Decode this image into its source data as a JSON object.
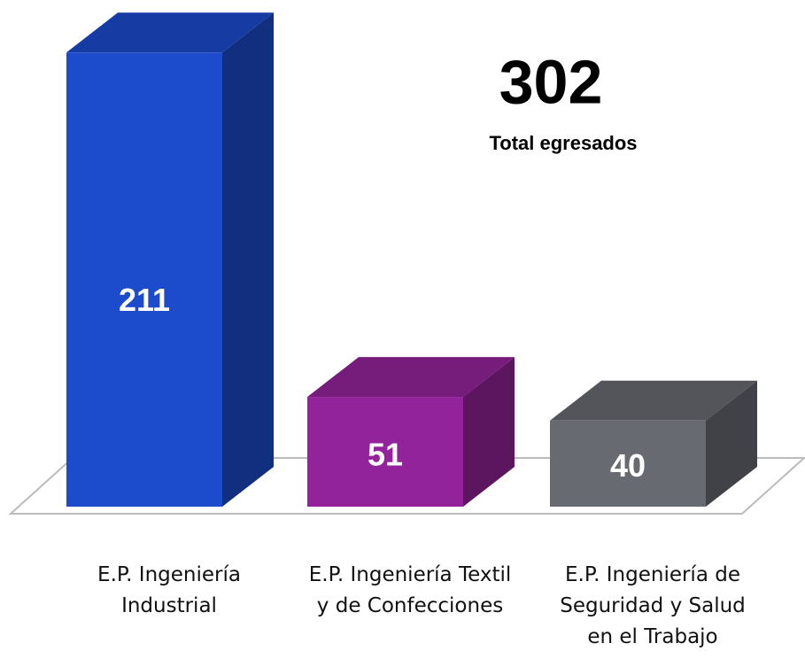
{
  "chart_data": {
    "type": "bar3d",
    "categories": [
      "E.P. Ingeniería Industrial",
      "E.P. Ingeniería Textil y de Confecciones",
      "E.P. Ingeniería de Seguridad y Salud en el Trabajo"
    ],
    "values": [
      211,
      51,
      40
    ],
    "colors": [
      "#1c4bcc",
      "#93239a",
      "#686a72"
    ],
    "total": 302,
    "total_label": "Total egresados"
  }
}
